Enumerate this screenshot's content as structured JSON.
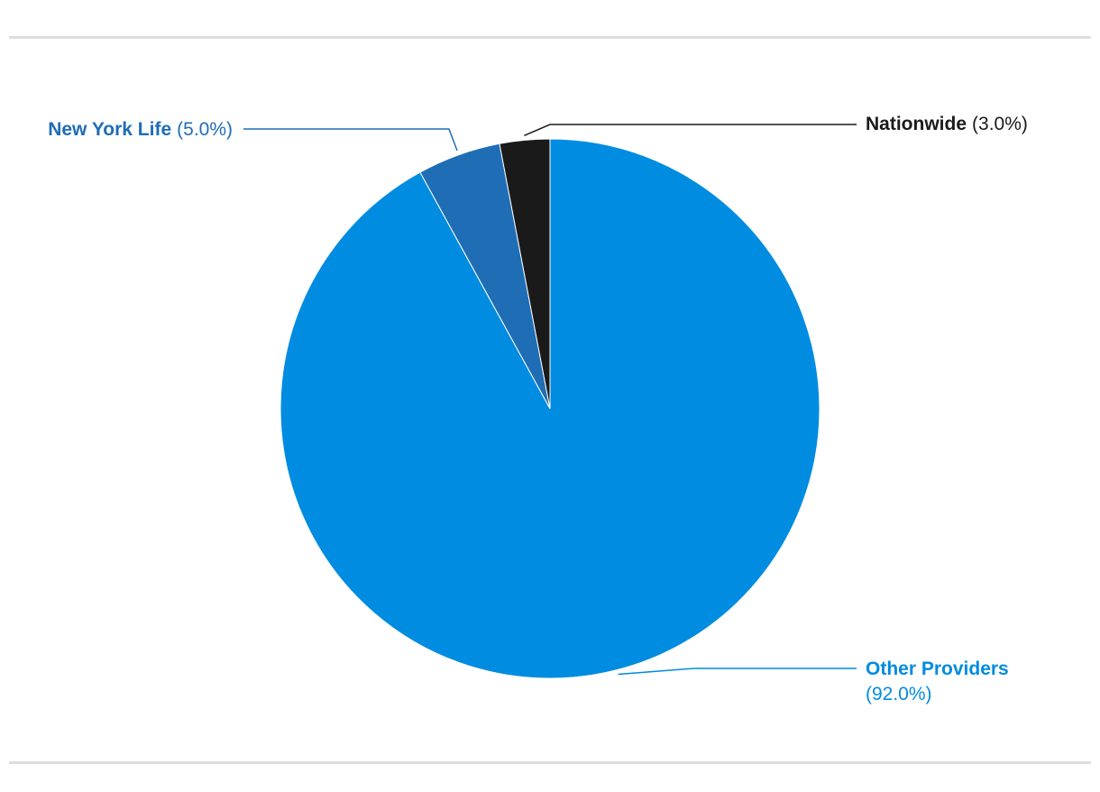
{
  "chart_data": {
    "type": "pie",
    "categories": [
      "Other Providers",
      "New York Life",
      "Nationwide"
    ],
    "values": [
      92,
      5,
      3
    ],
    "value_labels": [
      "(92.0%)",
      "(5.0%)",
      "(3.0%)"
    ],
    "colors": [
      "#008ce0",
      "#1f6db5",
      "#1a1a1a"
    ]
  }
}
